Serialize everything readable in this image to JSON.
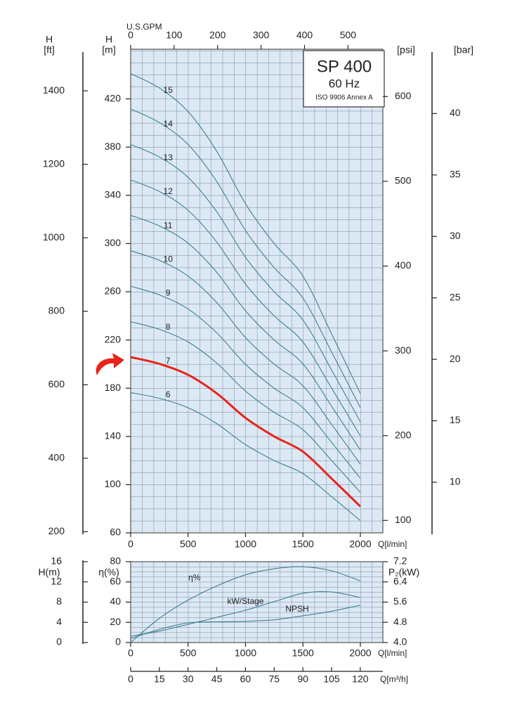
{
  "chart_data": [
    {
      "type": "line",
      "title": "SP 400",
      "subtitle": "60 Hz",
      "annotation": "ISO 9906 Annex A",
      "x": [
        0,
        250,
        500,
        750,
        1000,
        1250,
        1500,
        1750,
        2000
      ],
      "xlim": [
        0,
        2196
      ],
      "xticks": [
        0,
        500,
        1000,
        1500,
        2000
      ],
      "xlabel": "Q[l/min]",
      "ylim": [
        60,
        461.2
      ],
      "yticks": [
        60,
        100,
        140,
        180,
        220,
        260,
        300,
        340,
        380,
        420
      ],
      "ylabel": [
        "H",
        "[m]"
      ],
      "gpm_axis": {
        "label": "U.S.GPM",
        "lim": [
          0,
          580.2
        ],
        "ticks": [
          0,
          100,
          200,
          300,
          400,
          500
        ]
      },
      "ft_axis": {
        "label": [
          "H",
          "[ft]"
        ],
        "lim": [
          196.9,
          1513.2
        ],
        "ticks": [
          200,
          400,
          600,
          800,
          1000,
          1200,
          1400
        ]
      },
      "psi_axis": {
        "label": "[psi]",
        "lim": [
          85.3,
          655.8
        ],
        "ticks": [
          100,
          200,
          300,
          400,
          500,
          600
        ]
      },
      "bar_axis": {
        "label": "[bar]",
        "lim": [
          5.88,
          45.23
        ],
        "ticks": [
          10,
          15,
          20,
          25,
          30,
          35,
          40
        ]
      },
      "grid": true,
      "series": [
        {
          "name": "6",
          "color": "#3f7f8f",
          "values": [
            176.4,
            171.6,
            163.8,
            150.6,
            133.2,
            120.0,
            109.2,
            90.0,
            70.2
          ]
        },
        {
          "name": "7",
          "color": "#e8231a",
          "values": [
            205.8,
            200.2,
            191.1,
            175.7,
            155.4,
            140.0,
            127.4,
            105.0,
            81.9
          ]
        },
        {
          "name": "8",
          "color": "#3f7f8f",
          "values": [
            235.2,
            228.8,
            218.4,
            200.8,
            177.6,
            160.0,
            145.6,
            120.0,
            93.6
          ]
        },
        {
          "name": "9",
          "color": "#3f7f8f",
          "values": [
            264.6,
            257.4,
            245.7,
            225.9,
            199.8,
            180.0,
            163.8,
            135.0,
            105.3
          ]
        },
        {
          "name": "10",
          "color": "#3f7f8f",
          "values": [
            294.0,
            286.0,
            273.0,
            251.0,
            222.0,
            200.0,
            182.0,
            150.0,
            117.0
          ]
        },
        {
          "name": "11",
          "color": "#3f7f8f",
          "values": [
            323.4,
            314.6,
            300.3,
            276.1,
            244.2,
            220.0,
            200.2,
            165.0,
            128.7
          ]
        },
        {
          "name": "12",
          "color": "#3f7f8f",
          "values": [
            352.8,
            343.2,
            327.6,
            301.2,
            266.4,
            240.0,
            218.4,
            180.0,
            140.4
          ]
        },
        {
          "name": "13",
          "color": "#3f7f8f",
          "values": [
            382.2,
            371.8,
            354.9,
            326.3,
            288.6,
            260.0,
            236.6,
            195.0,
            152.1
          ]
        },
        {
          "name": "14",
          "color": "#3f7f8f",
          "values": [
            411.6,
            400.4,
            382.2,
            351.4,
            310.8,
            280.0,
            254.8,
            210.0,
            163.8
          ]
        },
        {
          "name": "15",
          "color": "#3f7f8f",
          "values": [
            441.0,
            429.0,
            409.5,
            376.5,
            333.0,
            300.0,
            273.0,
            225.0,
            175.5
          ]
        }
      ]
    },
    {
      "type": "line",
      "x": [
        0,
        250,
        500,
        750,
        1000,
        1250,
        1500,
        1750,
        2000
      ],
      "xlim": [
        0,
        2196
      ],
      "xticks": [
        0,
        500,
        1000,
        1500,
        2000
      ],
      "xlabel": "Q[l/min]",
      "ylim": [
        0,
        80
      ],
      "yticks": [
        0,
        20,
        40,
        60,
        80
      ],
      "ylabel": "η(%)",
      "h_axis": {
        "label": "H(m)",
        "lim": [
          0,
          16
        ],
        "ticks": [
          0,
          4,
          8,
          12,
          16
        ]
      },
      "p_axis": {
        "label": "P₂(kW)",
        "lim": [
          4.0,
          7.2
        ],
        "ticks": [
          {
            "value": 4,
            "label": "4.0"
          },
          4.8,
          5.6,
          6.4,
          7.2
        ]
      },
      "q2_axis": {
        "label": "Q[m³/h]",
        "lim": [
          0,
          131.8
        ],
        "ticks": [
          0,
          15,
          30,
          45,
          60,
          75,
          90,
          105,
          120
        ]
      },
      "grid": true,
      "series": [
        {
          "name": "η%",
          "color": "#3f7f8f",
          "values": [
            0,
            24,
            42,
            56,
            67,
            73,
            75,
            71,
            61
          ]
        },
        {
          "name": "kW/Stage",
          "color": "#3f7f8f",
          "axis": "p_axis",
          "values": [
            4.25,
            4.45,
            4.72,
            5.0,
            5.28,
            5.62,
            5.95,
            6.0,
            5.78
          ]
        },
        {
          "name": "NPSH",
          "color": "#3f7f8f",
          "axis": "h_axis",
          "values": [
            0.8,
            2.6,
            3.9,
            4.1,
            4.2,
            4.5,
            5.3,
            6.2,
            7.4
          ]
        }
      ]
    }
  ]
}
